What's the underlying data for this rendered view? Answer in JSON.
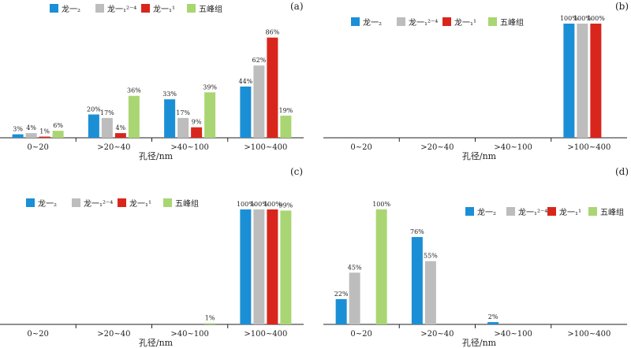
{
  "colors": {
    "long1_2": "#1b8fd6",
    "long1_1_24": "#bdbdbd",
    "long1_1_1": "#d9261c",
    "wufeng": "#a9d672",
    "axis": "#222222",
    "text": "#222222"
  },
  "chart_data": [
    {
      "type": "bar",
      "panel_label": "(a)",
      "xlabel": "孔径/nm",
      "categories": [
        "0~20",
        ">20~40",
        ">40~100",
        ">100~400"
      ],
      "legend": [
        "龙一₂",
        "龙一₁²⁻⁴",
        "龙一₁¹",
        "五峰组"
      ],
      "legend_position": "top",
      "ylim": [
        0,
        100
      ],
      "series": [
        {
          "name": "龙一₂",
          "values": [
            3,
            20,
            33,
            44
          ],
          "labels": [
            "3%",
            "20%",
            "33%",
            "44%"
          ]
        },
        {
          "name": "龙一₁²⁻⁴",
          "values": [
            4,
            17,
            17,
            62
          ],
          "labels": [
            "4%",
            "17%",
            "17%",
            "62%"
          ]
        },
        {
          "name": "龙一₁¹",
          "values": [
            1,
            4,
            9,
            86
          ],
          "labels": [
            "1%",
            "4%",
            "9%",
            "86%"
          ]
        },
        {
          "name": "五峰组",
          "values": [
            6,
            36,
            39,
            19
          ],
          "labels": [
            "6%",
            "36%",
            "39%",
            "19%"
          ]
        }
      ]
    },
    {
      "type": "bar",
      "panel_label": "(b)",
      "xlabel": "孔径/nm",
      "categories": [
        "0~20",
        ">20~40",
        ">40~100",
        ">100~400"
      ],
      "legend": [
        "龙一₂",
        "龙一₁²⁻⁴",
        "龙一₁¹",
        "五峰组"
      ],
      "legend_position": "top",
      "ylim": [
        0,
        100
      ],
      "series": [
        {
          "name": "龙一₂",
          "values": [
            0,
            0,
            0,
            100
          ],
          "labels": [
            "",
            "",
            "",
            "100%"
          ]
        },
        {
          "name": "龙一₁²⁻⁴",
          "values": [
            0,
            0,
            0,
            100
          ],
          "labels": [
            "",
            "",
            "",
            "100%"
          ]
        },
        {
          "name": "龙一₁¹",
          "values": [
            0,
            0,
            0,
            100
          ],
          "labels": [
            "",
            "",
            "",
            "100%"
          ]
        },
        {
          "name": "五峰组",
          "values": [
            0,
            0,
            0,
            0
          ],
          "labels": [
            "",
            "",
            "",
            ""
          ]
        }
      ]
    },
    {
      "type": "bar",
      "panel_label": "(c)",
      "xlabel": "孔径/nm",
      "categories": [
        "0~20",
        ">20~40",
        ">40~100",
        ">100~400"
      ],
      "legend": [
        "龙一₂",
        "龙一₁²⁻⁴",
        "龙一₁¹",
        "五峰组"
      ],
      "legend_position": "top",
      "ylim": [
        0,
        100
      ],
      "series": [
        {
          "name": "龙一₂",
          "values": [
            0,
            0,
            0,
            100
          ],
          "labels": [
            "",
            "",
            "",
            "100%"
          ]
        },
        {
          "name": "龙一₁²⁻⁴",
          "values": [
            0,
            0,
            0,
            100
          ],
          "labels": [
            "",
            "",
            "",
            "100%"
          ]
        },
        {
          "name": "龙一₁¹",
          "values": [
            0,
            0,
            0,
            100
          ],
          "labels": [
            "",
            "",
            "",
            "100%"
          ]
        },
        {
          "name": "五峰组",
          "values": [
            0,
            0,
            1,
            99
          ],
          "labels": [
            "",
            "",
            "1%",
            "99%"
          ]
        }
      ]
    },
    {
      "type": "bar",
      "panel_label": "(d)",
      "xlabel": "孔径/nm",
      "categories": [
        "0~20",
        ">20~40",
        ">40~100",
        ">100~400"
      ],
      "legend": [
        "龙一₂",
        "龙一₁²⁻⁴",
        "龙一₁¹",
        "五峰组"
      ],
      "legend_position": "top-right",
      "ylim": [
        0,
        100
      ],
      "series": [
        {
          "name": "龙一₂",
          "values": [
            22,
            76,
            2,
            0
          ],
          "labels": [
            "22%",
            "76%",
            "2%",
            ""
          ]
        },
        {
          "name": "龙一₁²⁻⁴",
          "values": [
            45,
            55,
            0,
            0
          ],
          "labels": [
            "45%",
            "55%",
            "",
            ""
          ]
        },
        {
          "name": "龙一₁¹",
          "values": [
            0,
            0,
            0,
            0
          ],
          "labels": [
            "",
            "",
            "",
            ""
          ]
        },
        {
          "name": "五峰组",
          "values": [
            100,
            0,
            0,
            0
          ],
          "labels": [
            "100%",
            "",
            "",
            ""
          ]
        }
      ]
    }
  ]
}
